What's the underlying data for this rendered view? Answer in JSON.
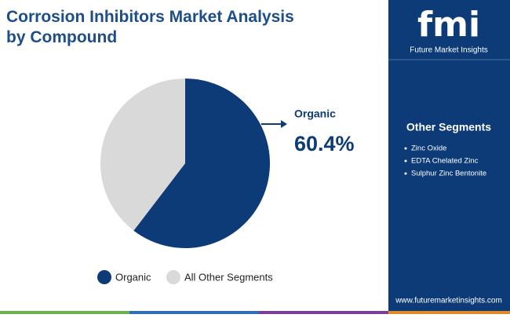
{
  "chart_data": {
    "type": "pie",
    "title": "Corrosion Inhibitors Market Analysis by Compound",
    "categories": [
      "Organic",
      "All Other Segments"
    ],
    "values": [
      60.4,
      39.6
    ],
    "value_labels": [
      "60.4%",
      null
    ],
    "colors": [
      "#0d3b78",
      "#d9d9d9"
    ],
    "legend": "bottom"
  },
  "logo": {
    "mark": "fmi",
    "name": "Future Market Insights"
  },
  "other_segments": {
    "title": "Other Segments",
    "items": [
      "Zinc Oxide",
      "EDTA Chelated Zinc",
      "Sulphur Zinc Bentonite"
    ]
  },
  "website": "www.futuremarketinsights.com"
}
